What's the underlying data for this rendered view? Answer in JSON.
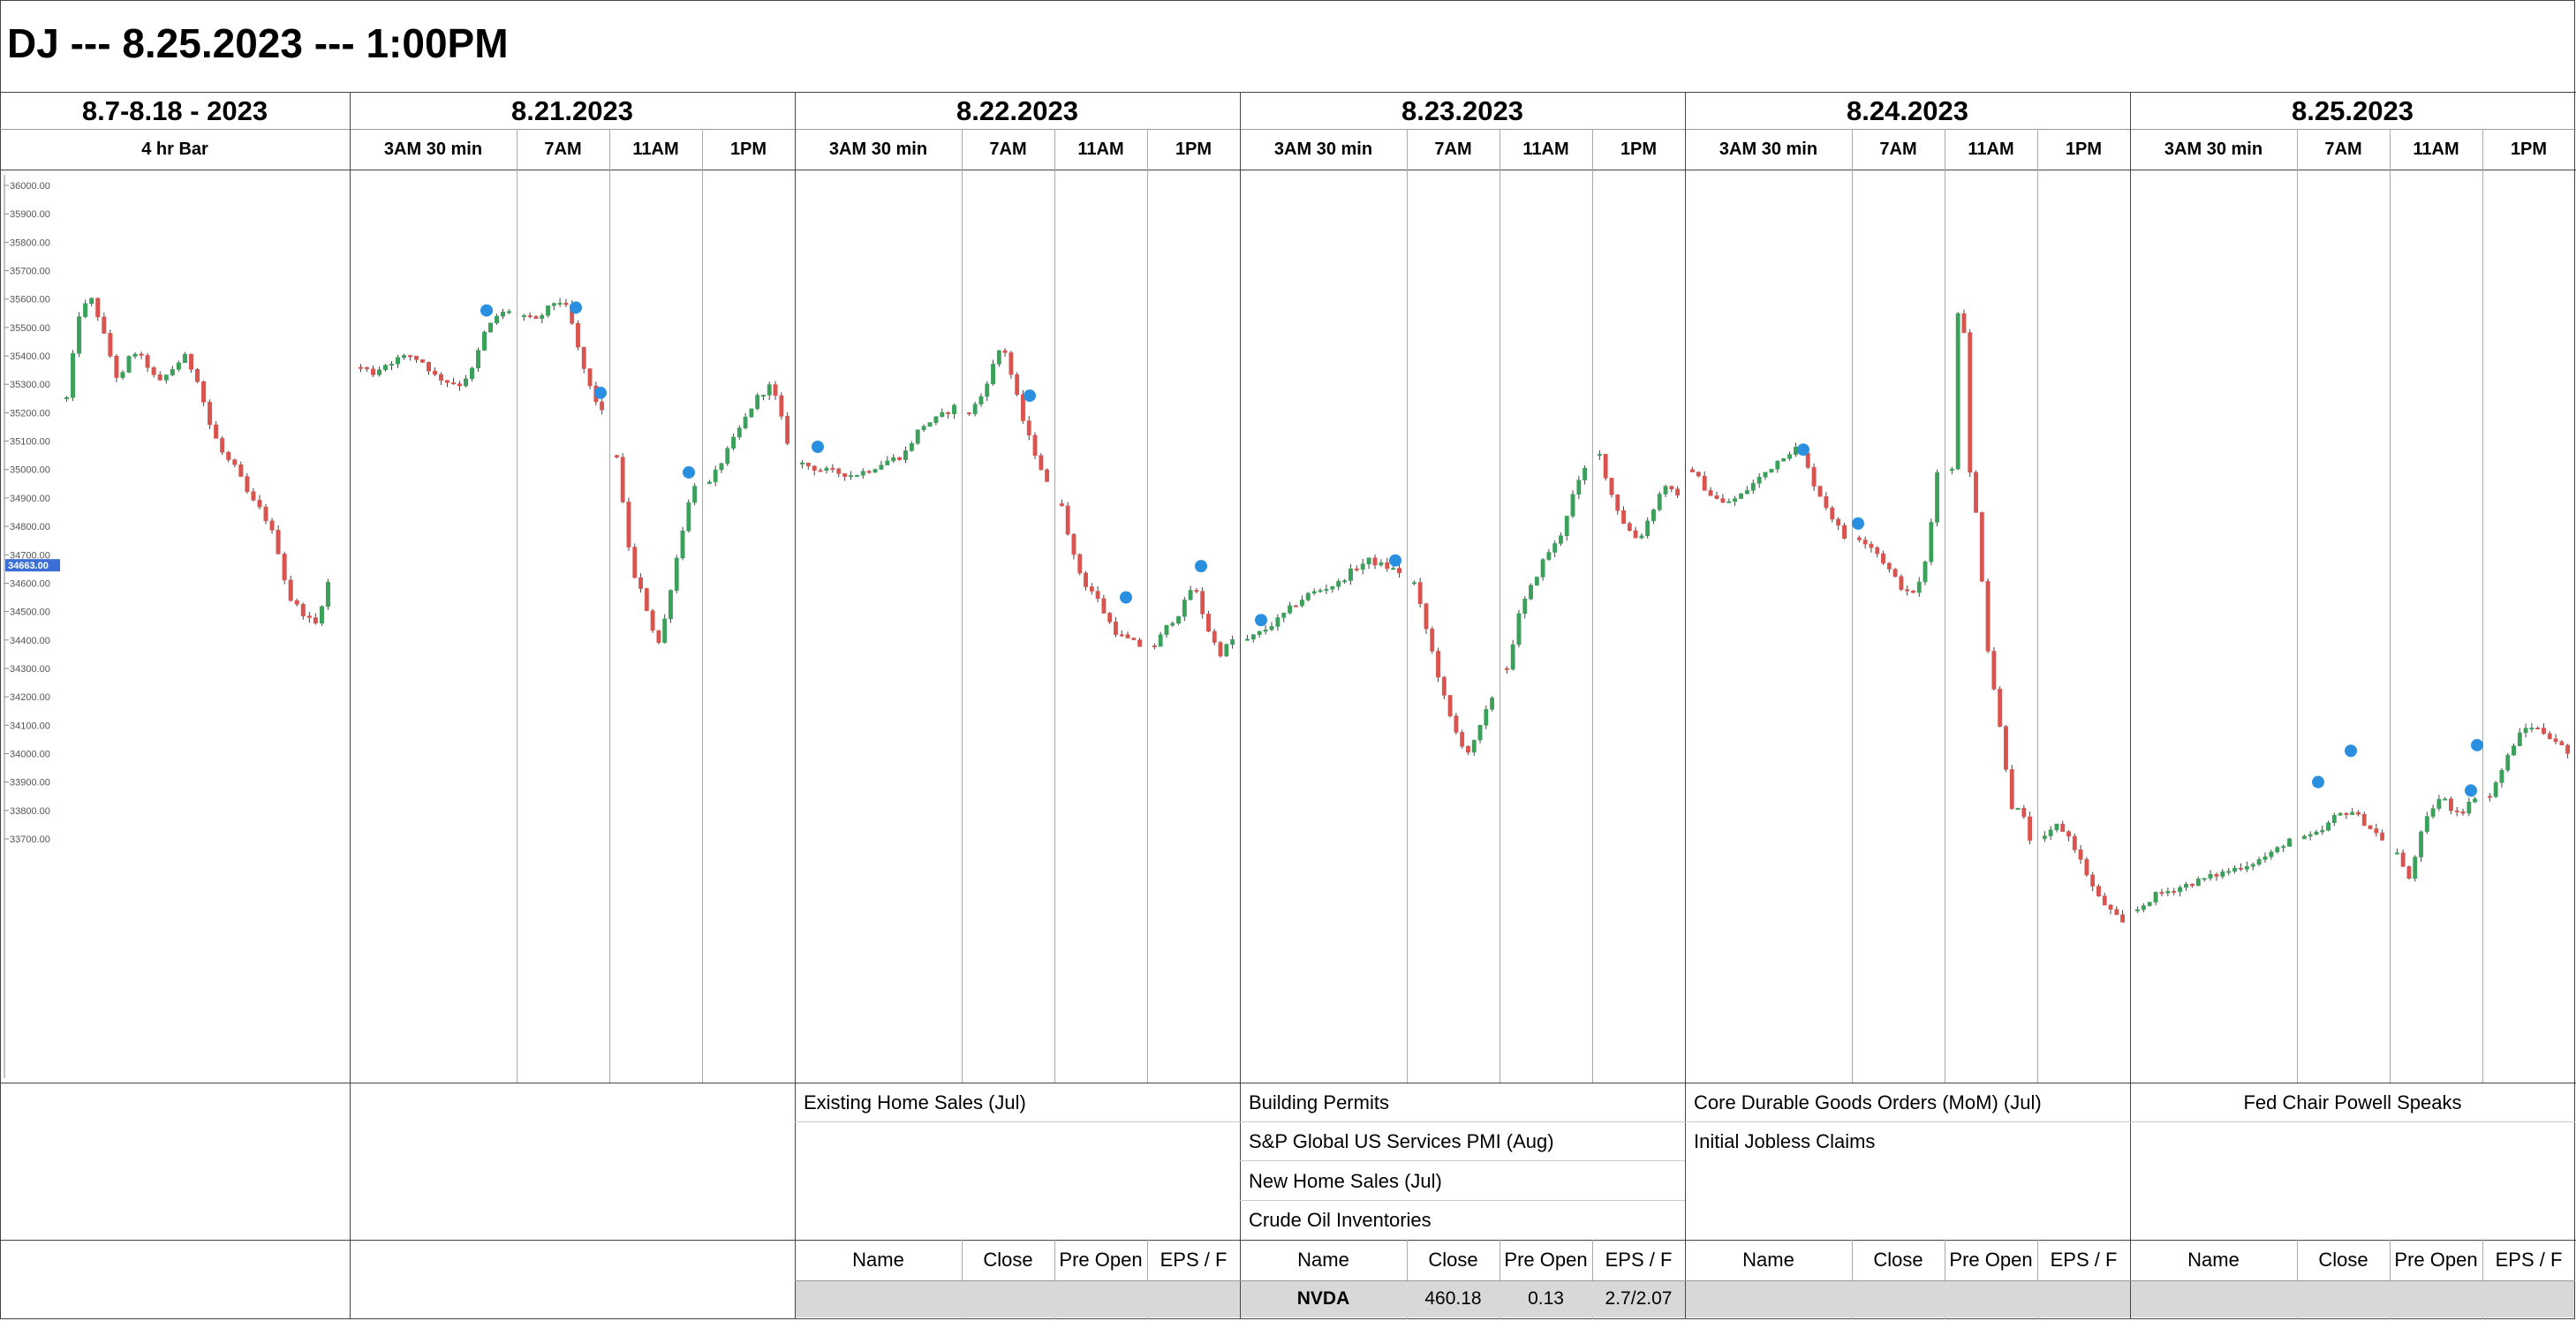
{
  "title": "DJ --- 8.25.2023 --- 1:00PM",
  "columns": [
    {
      "date": "8.7-8.18 - 2023",
      "sessions": [
        "4 hr Bar"
      ]
    },
    {
      "date": "8.21.2023",
      "sessions": [
        "3AM 30 min",
        "7AM",
        "11AM",
        "1PM"
      ]
    },
    {
      "date": "8.22.2023",
      "sessions": [
        "3AM 30 min",
        "7AM",
        "11AM",
        "1PM"
      ]
    },
    {
      "date": "8.23.2023",
      "sessions": [
        "3AM 30 min",
        "7AM",
        "11AM",
        "1PM"
      ]
    },
    {
      "date": "8.24.2023",
      "sessions": [
        "3AM 30 min",
        "7AM",
        "11AM",
        "1PM"
      ]
    },
    {
      "date": "8.25.2023",
      "sessions": [
        "3AM 30 min",
        "7AM",
        "11AM",
        "1PM"
      ]
    }
  ],
  "events": {
    "d822": [
      "Existing Home Sales (Jul)"
    ],
    "d823": [
      "Building Permits",
      "S&P Global US Services PMI (Aug)",
      "New Home Sales (Jul)",
      "Crude Oil Inventories"
    ],
    "d824": [
      "Core Durable Goods Orders (MoM) (Jul)",
      "Initial Jobless Claims"
    ],
    "d825": [
      "Fed Chair Powell Speaks"
    ]
  },
  "earnings": {
    "headers": [
      "Name",
      "Close",
      "Pre Open",
      "EPS / F"
    ],
    "d823": {
      "name": "NVDA",
      "close": "460.18",
      "pre_open": "0.13",
      "eps": "2.7/2.07"
    }
  },
  "colors": {
    "up": "#3aa05a",
    "down": "#d9534f",
    "marker": "#2b8fe0",
    "price_tag": "#3b6fd6"
  },
  "chart_data": {
    "type": "candlestick",
    "y_axis": {
      "ticks": [
        "36000.00",
        "35900.00",
        "35800.00",
        "35700.00",
        "35600.00",
        "35500.00",
        "35400.00",
        "35300.00",
        "35200.00",
        "35100.00",
        "35000.00",
        "34900.00",
        "34800.00",
        "34700.00",
        "34600.00",
        "34500.00",
        "34400.00",
        "34300.00",
        "34200.00",
        "34100.00",
        "34000.00",
        "33900.00",
        "33800.00",
        "33700.00"
      ],
      "range": [
        33700,
        36000
      ],
      "current_price_label": "34663.00",
      "current_price": 34663
    },
    "series": [
      {
        "panel": "8.7-8.18",
        "approx_path": [
          35250,
          35560,
          35600,
          35450,
          35300,
          35420,
          35380,
          35300,
          35350,
          35400,
          35320,
          35150,
          35050,
          35000,
          34900,
          34850,
          34750,
          34550,
          34500,
          34450,
          34600
        ]
      },
      {
        "panel": "8.21 3AM",
        "approx_path": [
          35360,
          35340,
          35370,
          35390,
          35400,
          35380,
          35330,
          35310,
          35300,
          35350,
          35480,
          35540,
          35560
        ]
      },
      {
        "panel": "8.21 7AM",
        "approx_path": [
          35540,
          35520,
          35560,
          35600,
          35560,
          35400,
          35280,
          35200
        ]
      },
      {
        "panel": "8.21 11AM",
        "approx_path": [
          35050,
          34800,
          34620,
          34560,
          34450,
          34380,
          34550,
          34700,
          34850,
          34950
        ]
      },
      {
        "panel": "8.21 1PM",
        "approx_path": [
          34950,
          35050,
          35150,
          35250,
          35300,
          35100
        ]
      },
      {
        "panel": "8.22 3AM",
        "approx_path": [
          35020,
          35000,
          34990,
          34980,
          35000,
          35030,
          35050,
          35150,
          35180,
          35220
        ]
      },
      {
        "panel": "8.22 7AM",
        "approx_path": [
          35200,
          35250,
          35350,
          35450,
          35300,
          35150,
          35050,
          34950
        ]
      },
      {
        "panel": "8.22 11AM",
        "approx_path": [
          34880,
          34700,
          34600,
          34560,
          34480,
          34420,
          34400,
          34380
        ]
      },
      {
        "panel": "8.22 1PM",
        "approx_path": [
          34380,
          34450,
          34500,
          34600,
          34450,
          34350,
          34400
        ]
      },
      {
        "panel": "8.23 3AM",
        "approx_path": [
          34400,
          34430,
          34470,
          34520,
          34560,
          34580,
          34600,
          34650,
          34680,
          34660,
          34640
        ]
      },
      {
        "panel": "8.23 7AM",
        "approx_path": [
          34600,
          34450,
          34300,
          34150,
          34050,
          34000,
          34100,
          34200
        ]
      },
      {
        "panel": "8.23 11AM",
        "approx_path": [
          34300,
          34500,
          34600,
          34700,
          34750,
          34900,
          35000
        ]
      },
      {
        "panel": "8.23 1PM",
        "approx_path": [
          35050,
          34900,
          34800,
          34750,
          34850,
          34950,
          34900
        ]
      },
      {
        "panel": "8.24 3AM",
        "approx_path": [
          35000,
          34920,
          34880,
          34900,
          34950,
          35000,
          35050,
          35080,
          34950,
          34850,
          34760
        ]
      },
      {
        "panel": "8.24 7AM",
        "approx_path": [
          34760,
          34740,
          34700,
          34650,
          34600,
          34560,
          34580,
          34700,
          35000
        ]
      },
      {
        "panel": "8.24 11AM",
        "approx_path": [
          35000,
          35800,
          35000,
          34800,
          34400,
          34200,
          34000,
          33800,
          33800,
          33700
        ]
      },
      {
        "panel": "8.24 1PM",
        "approx_path": [
          33700,
          33750,
          33700,
          33600,
          33500,
          33450,
          33400
        ]
      },
      {
        "panel": "8.25 3AM",
        "approx_path": [
          33450,
          33500,
          33520,
          33540,
          33560,
          33580,
          33600,
          33620,
          33650,
          33700
        ]
      },
      {
        "panel": "8.25 7AM",
        "approx_path": [
          33700,
          33720,
          33780,
          33800,
          33750,
          33700
        ]
      },
      {
        "panel": "8.25 11AM",
        "approx_path": [
          33650,
          33550,
          33700,
          33800,
          33850,
          33800,
          33800,
          33850
        ]
      },
      {
        "panel": "8.25 1PM",
        "approx_path": [
          33850,
          33950,
          34050,
          34100,
          34080,
          34050,
          34000
        ]
      }
    ]
  }
}
